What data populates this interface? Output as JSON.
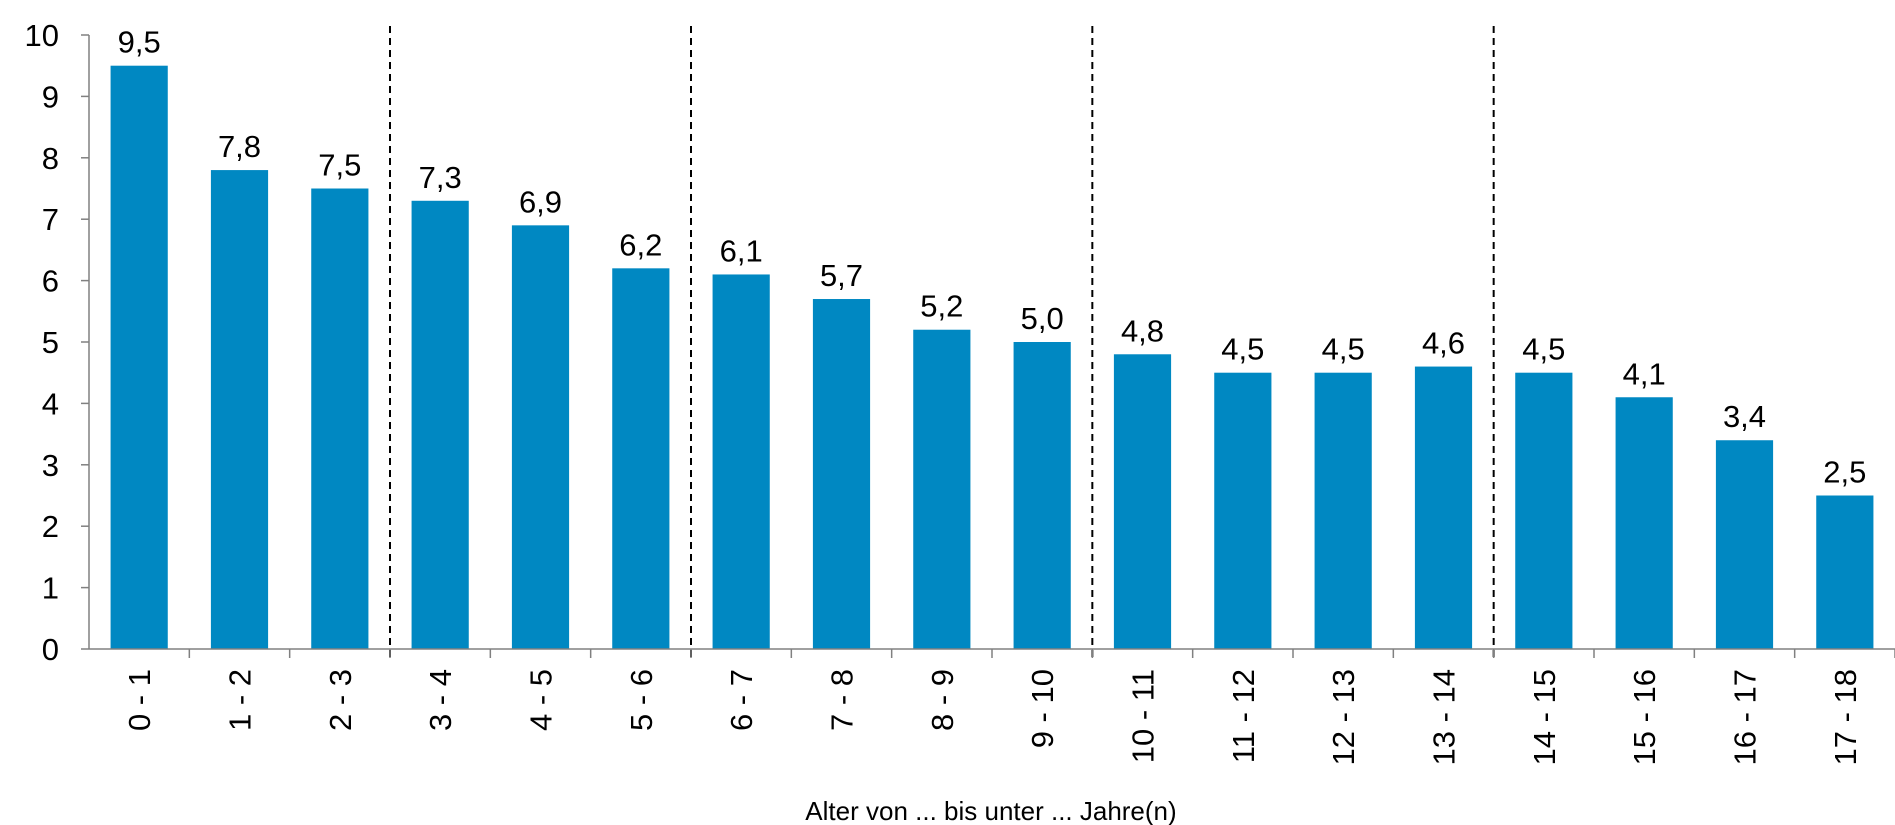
{
  "chart_data": {
    "type": "bar",
    "title": "",
    "xlabel": "Alter von ... bis unter ... Jahre(n)",
    "ylabel": "",
    "ylim": [
      0,
      10
    ],
    "yticks": [
      "0",
      "1",
      "2",
      "3",
      "4",
      "5",
      "6",
      "7",
      "8",
      "9",
      "10"
    ],
    "grid": false,
    "legend": "none",
    "bar_color": "#0088C2",
    "categories": [
      "0 - 1",
      "1 - 2",
      "2 - 3",
      "3 - 4",
      "4 - 5",
      "5 - 6",
      "6 - 7",
      "7 - 8",
      "8 - 9",
      "9 - 10",
      "10 - 11",
      "11 - 12",
      "12 - 13",
      "13 - 14",
      "14 - 15",
      "15 - 16",
      "16 - 17",
      "17 - 18"
    ],
    "values": [
      9.5,
      7.8,
      7.5,
      7.3,
      6.9,
      6.2,
      6.1,
      5.7,
      5.2,
      5.0,
      4.8,
      4.5,
      4.5,
      4.6,
      4.5,
      4.1,
      3.4,
      2.5
    ],
    "value_labels": [
      "9,5",
      "7,8",
      "7,5",
      "7,3",
      "6,9",
      "6,2",
      "6,1",
      "5,7",
      "5,2",
      "5,0",
      "4,8",
      "4,5",
      "4,5",
      "4,6",
      "4,5",
      "4,1",
      "3,4",
      "2,5"
    ],
    "group_separators_after": [
      "2 - 3",
      "5 - 6",
      "9 - 10",
      "13 - 14"
    ]
  }
}
